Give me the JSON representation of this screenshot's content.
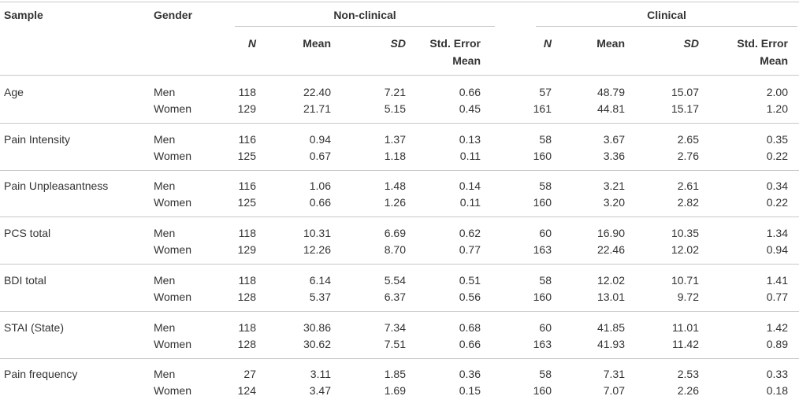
{
  "table": {
    "header": {
      "sample": "Sample",
      "gender": "Gender",
      "groups": [
        "Non-clinical",
        "Clinical"
      ],
      "columns": [
        "N",
        "Mean",
        "SD",
        "Std. Error Mean",
        "N",
        "Mean",
        "SD",
        "Std. Error Mean"
      ]
    },
    "groups": [
      {
        "sample": "Age",
        "rows": [
          {
            "gender": "Men",
            "values": [
              "118",
              "22.40",
              "7.21",
              "0.66",
              "57",
              "48.79",
              "15.07",
              "2.00"
            ]
          },
          {
            "gender": "Women",
            "values": [
              "129",
              "21.71",
              "5.15",
              "0.45",
              "161",
              "44.81",
              "15.17",
              "1.20"
            ]
          }
        ]
      },
      {
        "sample": "Pain Intensity",
        "rows": [
          {
            "gender": "Men",
            "values": [
              "116",
              "0.94",
              "1.37",
              "0.13",
              "58",
              "3.67",
              "2.65",
              "0.35"
            ]
          },
          {
            "gender": "Women",
            "values": [
              "125",
              "0.67",
              "1.18",
              "0.11",
              "160",
              "3.36",
              "2.76",
              "0.22"
            ]
          }
        ]
      },
      {
        "sample": "Pain Unpleasantness",
        "rows": [
          {
            "gender": "Men",
            "values": [
              "116",
              "1.06",
              "1.48",
              "0.14",
              "58",
              "3.21",
              "2.61",
              "0.34"
            ]
          },
          {
            "gender": "Women",
            "values": [
              "125",
              "0.66",
              "1.26",
              "0.11",
              "160",
              "3.20",
              "2.82",
              "0.22"
            ]
          }
        ]
      },
      {
        "sample": "PCS total",
        "rows": [
          {
            "gender": "Men",
            "values": [
              "118",
              "10.31",
              "6.69",
              "0.62",
              "60",
              "16.90",
              "10.35",
              "1.34"
            ]
          },
          {
            "gender": "Women",
            "values": [
              "129",
              "12.26",
              "8.70",
              "0.77",
              "163",
              "22.46",
              "12.02",
              "0.94"
            ]
          }
        ]
      },
      {
        "sample": "BDI total",
        "rows": [
          {
            "gender": "Men",
            "values": [
              "118",
              "6.14",
              "5.54",
              "0.51",
              "58",
              "12.02",
              "10.71",
              "1.41"
            ]
          },
          {
            "gender": "Women",
            "values": [
              "128",
              "5.37",
              "6.37",
              "0.56",
              "160",
              "13.01",
              "9.72",
              "0.77"
            ]
          }
        ]
      },
      {
        "sample": "STAI (State)",
        "rows": [
          {
            "gender": "Men",
            "values": [
              "118",
              "30.86",
              "7.34",
              "0.68",
              "60",
              "41.85",
              "11.01",
              "1.42"
            ]
          },
          {
            "gender": "Women",
            "values": [
              "128",
              "30.62",
              "7.51",
              "0.66",
              "163",
              "41.93",
              "11.42",
              "0.89"
            ]
          }
        ]
      },
      {
        "sample": "Pain frequency",
        "rows": [
          {
            "gender": "Men",
            "values": [
              "27",
              "3.11",
              "1.85",
              "0.36",
              "58",
              "7.31",
              "2.53",
              "0.33"
            ]
          },
          {
            "gender": "Women",
            "values": [
              "124",
              "3.47",
              "1.69",
              "0.15",
              "160",
              "7.07",
              "2.26",
              "0.18"
            ]
          }
        ]
      }
    ]
  }
}
